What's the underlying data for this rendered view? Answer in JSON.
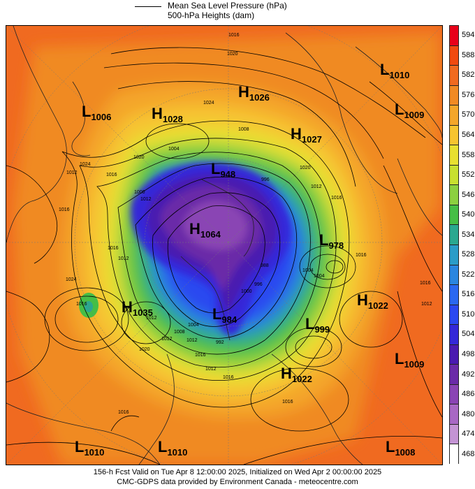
{
  "header": {
    "line1": "Mean Sea Level Pressure (hPa)",
    "line2": "500-hPa Heights (dam)"
  },
  "colors": {
    "594": "#e8001a",
    "588": "#f04a10",
    "582": "#f06a20",
    "576": "#f08a24",
    "570": "#f4a62a",
    "564": "#f6c430",
    "558": "#e8e030",
    "552": "#c8e030",
    "546": "#8cd040",
    "540": "#46be46",
    "534": "#2aa890",
    "528": "#2a9cc8",
    "522": "#2a86e0",
    "516": "#2a68f0",
    "510": "#2a48f0",
    "504": "#3428d8",
    "498": "#4a1ab0",
    "492": "#6a2aa8",
    "486": "#8a44b4",
    "480": "#a868c4",
    "474": "#c494d4",
    "468": "#ffffff"
  },
  "scale": {
    "labels": [
      "594",
      "588",
      "582",
      "576",
      "570",
      "564",
      "558",
      "552",
      "546",
      "540",
      "534",
      "528",
      "522",
      "516",
      "510",
      "504",
      "498",
      "492",
      "486",
      "480",
      "474",
      "468"
    ]
  },
  "centers": [
    {
      "kind": "L",
      "value": "1010",
      "label_id": "low-1010-ne"
    },
    {
      "kind": "L",
      "value": "1006",
      "label_id": "low-1006-nw"
    },
    {
      "kind": "H",
      "value": "1026",
      "label_id": "high-1026"
    },
    {
      "kind": "H",
      "value": "1028",
      "label_id": "high-1028"
    },
    {
      "kind": "L",
      "value": "1009",
      "label_id": "low-1009-ne"
    },
    {
      "kind": "H",
      "value": "1027",
      "label_id": "high-1027"
    },
    {
      "kind": "L",
      "value": "948",
      "label_id": "low-948"
    },
    {
      "kind": "H",
      "value": "1064",
      "label_id": "high-1064"
    },
    {
      "kind": "L",
      "value": "978",
      "label_id": "low-978"
    },
    {
      "kind": "H",
      "value": "1035",
      "label_id": "high-1035"
    },
    {
      "kind": "L",
      "value": "984",
      "label_id": "low-984"
    },
    {
      "kind": "H",
      "value": "1022",
      "label_id": "high-1022-e"
    },
    {
      "kind": "L",
      "value": "999",
      "label_id": "low-999"
    },
    {
      "kind": "L",
      "value": "1009",
      "label_id": "low-1009-e"
    },
    {
      "kind": "H",
      "value": "1022",
      "label_id": "high-1022-s"
    },
    {
      "kind": "L",
      "value": "1010",
      "label_id": "low-1010-sw"
    },
    {
      "kind": "L",
      "value": "1010",
      "label_id": "low-1010-s"
    },
    {
      "kind": "L",
      "value": "1008",
      "label_id": "low-1008-se"
    }
  ],
  "isobar_labels": [
    "1016",
    "1020",
    "1024",
    "1008",
    "1020",
    "1004",
    "1016",
    "1012",
    "1020",
    "1000",
    "996",
    "1012",
    "1012",
    "1016",
    "1024",
    "1020",
    "1012",
    "1008",
    "1004",
    "1016",
    "1016",
    "1016",
    "1016",
    "1012",
    "1012",
    "1016",
    "1012",
    "988",
    "996",
    "1004",
    "1000",
    "1004",
    "1024",
    "1016",
    "1012",
    "1016",
    "1016",
    "1012",
    "1016",
    "992"
  ],
  "footer": {
    "line1": "156-h Fcst Valid on Tue Apr  8 12:00:00 2025, Initialized on Wed Apr  2 00:00:00 2025",
    "line2": "CMC-GDPS data provided by Environment Canada - meteocentre.com"
  }
}
